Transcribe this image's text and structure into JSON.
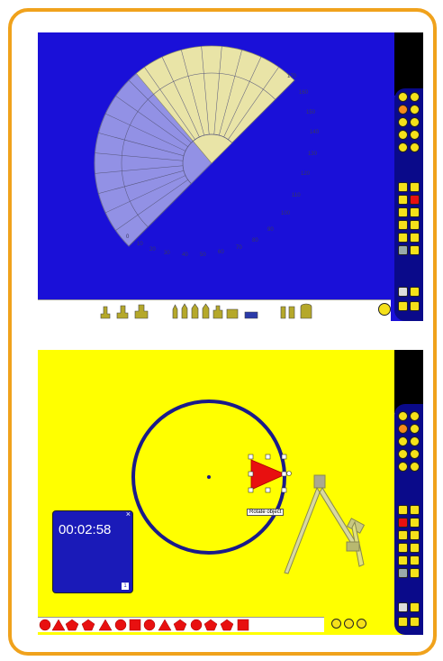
{
  "screen1": {
    "background": "#1a10d8",
    "protractor_labels": [
      "170",
      "160",
      "150",
      "140",
      "130",
      "120",
      "110",
      "100",
      "90",
      "80",
      "70",
      "60",
      "50",
      "40",
      "30",
      "20",
      "10",
      "0"
    ]
  },
  "screen2": {
    "background": "#ffff00",
    "timer": {
      "time": "00:02:58",
      "close_glyph": "×",
      "corner_label": "1"
    },
    "tooltip": "Rotate object"
  },
  "colors": {
    "frame": "#f0a21c",
    "toolbar": "#0a0a8a",
    "button": "#f5e11a",
    "shape": "#e81010"
  }
}
